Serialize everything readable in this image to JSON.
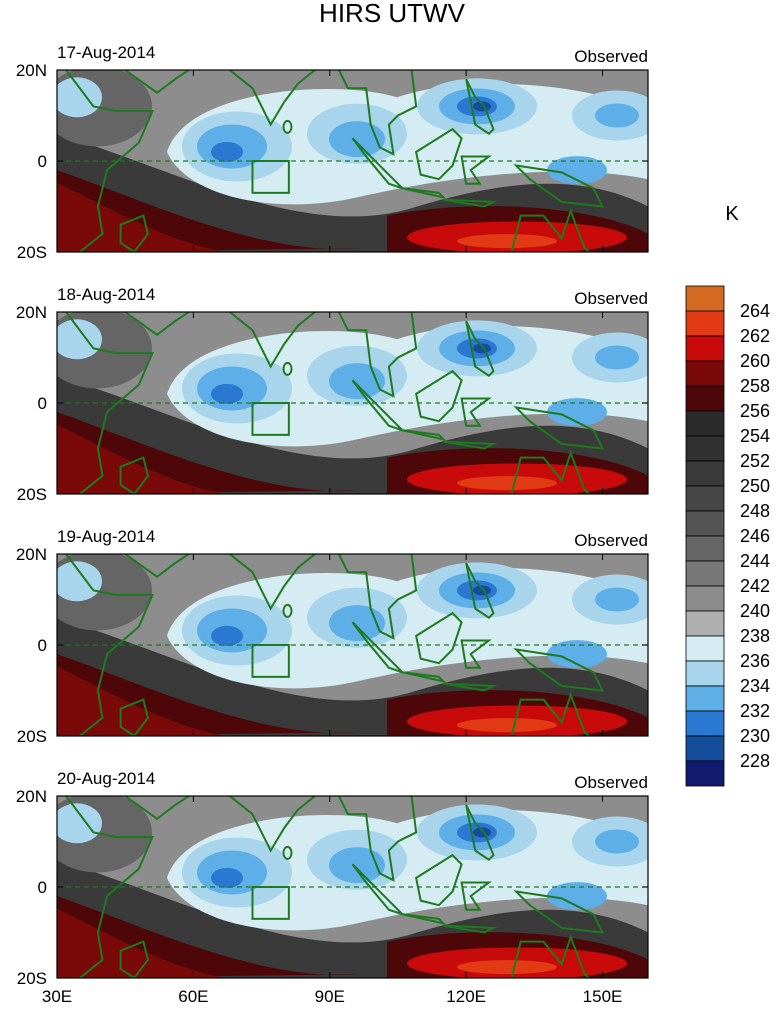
{
  "title": "HIRS UTWV",
  "unit_label": "K",
  "panels": [
    {
      "date": "17-Aug-2014",
      "tag": "Observed"
    },
    {
      "date": "18-Aug-2014",
      "tag": "Observed"
    },
    {
      "date": "19-Aug-2014",
      "tag": "Observed"
    },
    {
      "date": "20-Aug-2014",
      "tag": "Observed"
    }
  ],
  "lat_labels": [
    "20N",
    "0",
    "20S"
  ],
  "lon_labels": [
    "30E",
    "60E",
    "90E",
    "120E",
    "150E"
  ],
  "colorbar": {
    "levels": [
      "264",
      "262",
      "260",
      "258",
      "256",
      "254",
      "252",
      "250",
      "248",
      "246",
      "244",
      "242",
      "240",
      "238",
      "236",
      "234",
      "232",
      "230",
      "228"
    ],
    "colors": [
      "#d46a22",
      "#e33a16",
      "#c80a0a",
      "#7a0a0a",
      "#4e0708",
      "#2a2a2a",
      "#303030",
      "#3a3a3a",
      "#464646",
      "#545454",
      "#656565",
      "#787878",
      "#8d8d8d",
      "#b0b0b0",
      "#d4ecf2",
      "#a8d5ec",
      "#5eaee8",
      "#2a78d2",
      "#144e9a",
      "#121a6e"
    ]
  },
  "colors": {
    "coast": "#1e7a1e",
    "equator": "#1e7a1e",
    "box": "#1e7a1e"
  }
}
